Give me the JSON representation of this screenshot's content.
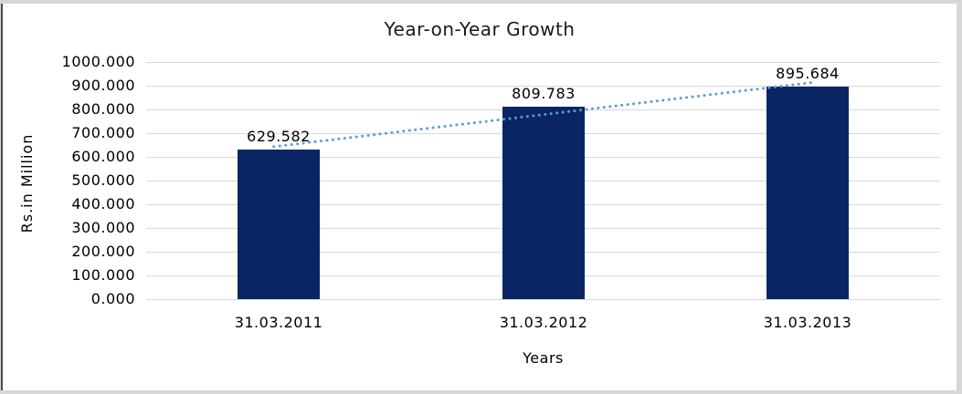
{
  "chart_data": {
    "type": "bar",
    "title": "Year-on-Year Growth",
    "xlabel": "Years",
    "ylabel": "Rs.in Million",
    "categories": [
      "31.03.2011",
      "31.03.2012",
      "31.03.2013"
    ],
    "values": [
      629.582,
      809.783,
      895.684
    ],
    "value_labels": [
      "629.582",
      "809.783",
      "895.684"
    ],
    "y_tick_labels": [
      "1000.000",
      "900.000",
      "800.000",
      "700.000",
      "600.000",
      "500.000",
      "400.000",
      "300.000",
      "200.000",
      "100.000",
      "0.000"
    ],
    "ylim": [
      0,
      1000
    ],
    "y_tick_step": 100,
    "grid": true,
    "legend": "none",
    "bar_color": "#0a2563",
    "trendline": {
      "type": "linear",
      "style": "dotted",
      "color": "#5b9bd5"
    },
    "gridline_color": "#d9d9d9",
    "text_color": "#000000"
  }
}
